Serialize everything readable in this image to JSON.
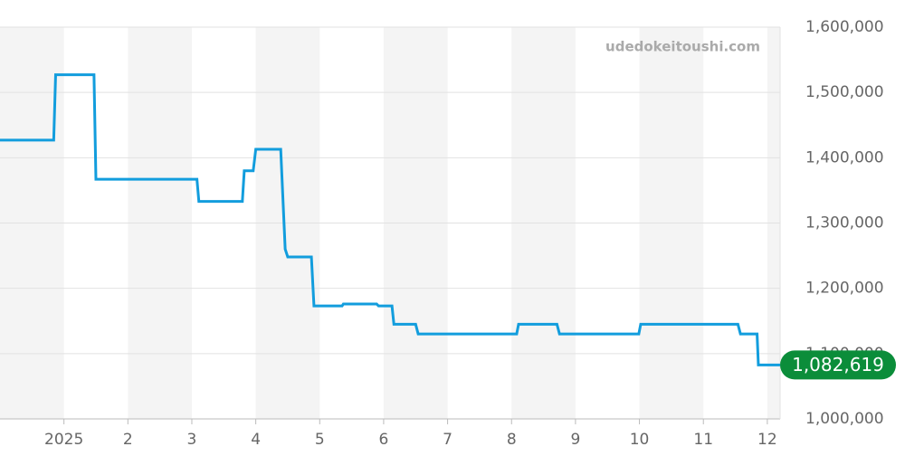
{
  "chart_data": {
    "type": "line",
    "annotation": "udedokeitoushi.com",
    "x": [
      0,
      0.84,
      0.87,
      1.47,
      1.5,
      3.08,
      3.11,
      3.79,
      3.82,
      3.96,
      4.0,
      4.39,
      4.46,
      4.5,
      4.87,
      4.91,
      5.35,
      5.37,
      5.89,
      5.92,
      6.13,
      6.16,
      6.5,
      6.54,
      8.08,
      8.11,
      8.71,
      8.75,
      9.99,
      10.02,
      11.54,
      11.58,
      11.84,
      11.86,
      12.2
    ],
    "values": [
      1427000,
      1427000,
      1527000,
      1527000,
      1367000,
      1367000,
      1333000,
      1333000,
      1380000,
      1380000,
      1413000,
      1413000,
      1260000,
      1248000,
      1248000,
      1173000,
      1173000,
      1176000,
      1176000,
      1173000,
      1173000,
      1145000,
      1145000,
      1130000,
      1130000,
      1145000,
      1145000,
      1130000,
      1130000,
      1145000,
      1145000,
      1130000,
      1130000,
      1082619,
      1082619
    ],
    "value_labels": [
      null,
      null,
      null,
      null,
      null,
      null,
      null,
      null,
      null,
      null,
      null,
      null,
      null,
      null,
      null,
      null,
      null,
      null,
      null,
      null,
      null,
      null,
      null,
      null,
      null,
      null,
      null,
      null,
      null,
      null,
      null,
      null,
      null,
      null,
      "1,082,619"
    ],
    "color": "#129ddd",
    "xlim": [
      0,
      12.2
    ],
    "xticks": [
      {
        "value": 1,
        "label": "2025"
      },
      2,
      3,
      4,
      5,
      6,
      7,
      8,
      9,
      10,
      11,
      12
    ],
    "ylim": [
      1000000,
      1600000
    ],
    "yticks": [
      {
        "value": 1000000,
        "label": "1,000,000"
      },
      {
        "value": 1100000,
        "label": "1,100,000"
      },
      {
        "value": 1200000,
        "label": "1,200,000"
      },
      {
        "value": 1300000,
        "label": "1,300,000"
      },
      {
        "value": 1400000,
        "label": "1,400,000"
      },
      {
        "value": 1500000,
        "label": "1,500,000"
      },
      {
        "value": 1600000,
        "label": "1,600,000"
      }
    ],
    "grid": true
  }
}
